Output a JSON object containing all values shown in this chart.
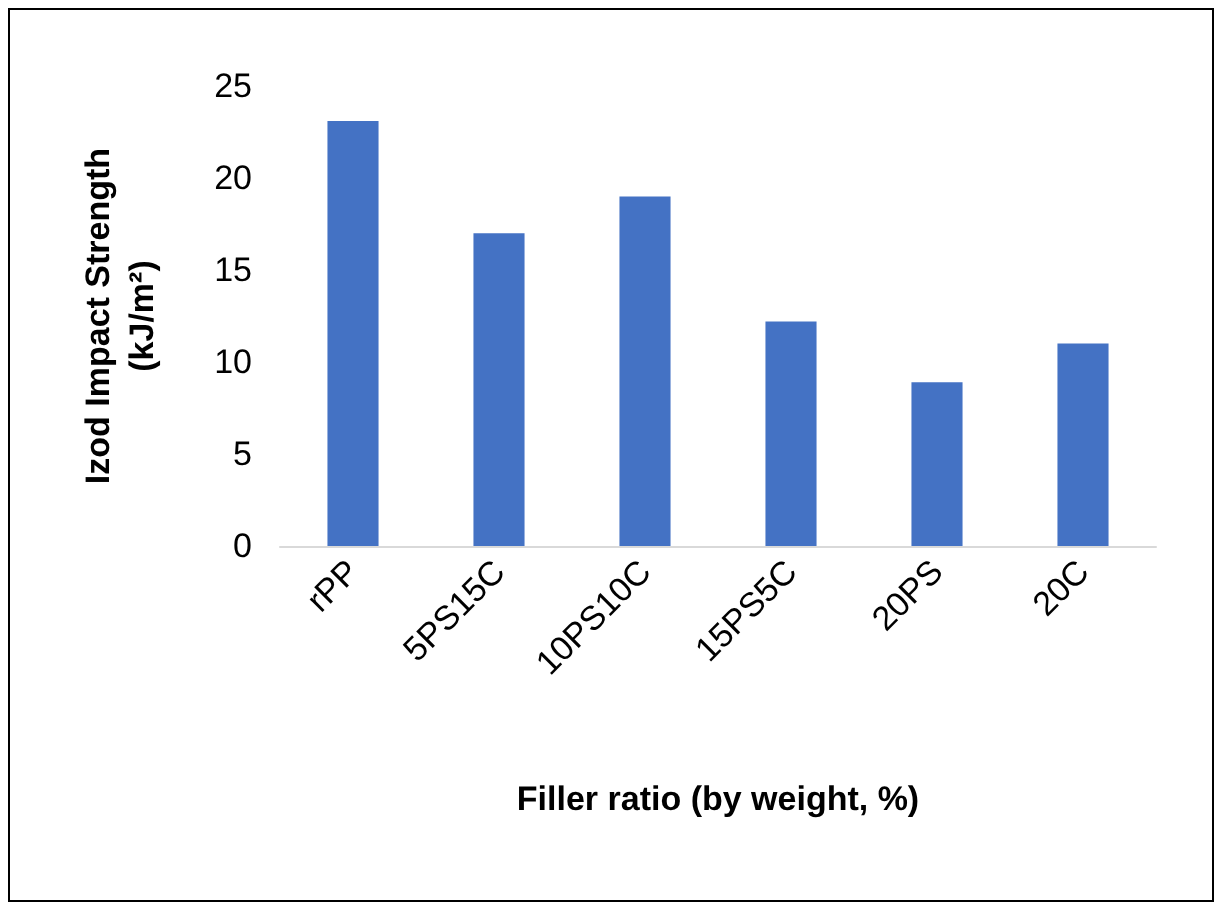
{
  "chart_data": {
    "type": "bar",
    "xlabel": "Filler ratio (by weight, %)",
    "ylabel": "Izod Impact Strength (kJ/m²)",
    "categories": [
      "rPP",
      "5PS15C",
      "10PS10C",
      "15PS5C",
      "20PS",
      "20C"
    ],
    "values": [
      23.1,
      17.0,
      19.0,
      12.2,
      8.9,
      11.0
    ],
    "color": "#4472c4",
    "ylim": [
      0,
      25
    ],
    "yticks": [
      0,
      5,
      10,
      15,
      20,
      25
    ],
    "grid": false
  }
}
